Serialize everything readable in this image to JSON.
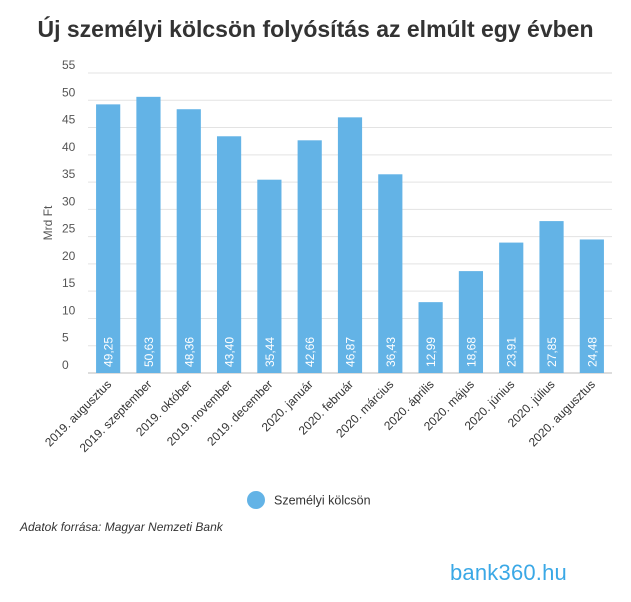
{
  "chart_data": {
    "type": "bar",
    "title": "Új személyi kölcsön folyósítás az elmúlt egy évben",
    "ylabel": "Mrd Ft",
    "xlabel": "",
    "ylim": [
      0,
      55
    ],
    "yticks": [
      0,
      5,
      10,
      15,
      20,
      25,
      30,
      35,
      40,
      45,
      50,
      55
    ],
    "grid": true,
    "legend_position": "bottom-center",
    "categories": [
      "2019. augusztus",
      "2019. szeptember",
      "2019. október",
      "2019. november",
      "2019. december",
      "2020. január",
      "2020. február",
      "2020. március",
      "2020. április",
      "2020. május",
      "2020. június",
      "2020. július",
      "2020. augusztus"
    ],
    "series": [
      {
        "name": "Személyi kölcsön",
        "color": "#63b3e6",
        "values": [
          49.25,
          50.63,
          48.36,
          43.4,
          35.44,
          42.66,
          46.87,
          36.43,
          12.99,
          18.68,
          23.91,
          27.85,
          24.48
        ],
        "labels": [
          "49,25",
          "50,63",
          "48,36",
          "43,40",
          "35,44",
          "42,66",
          "46,87",
          "36,43",
          "12,99",
          "18,68",
          "23,91",
          "27,85",
          "24,48"
        ]
      }
    ]
  },
  "source": "Adatok forrása: Magyar Nemzeti Bank",
  "logo": {
    "text": "bank360.hu",
    "color": "#3aa8e6"
  }
}
